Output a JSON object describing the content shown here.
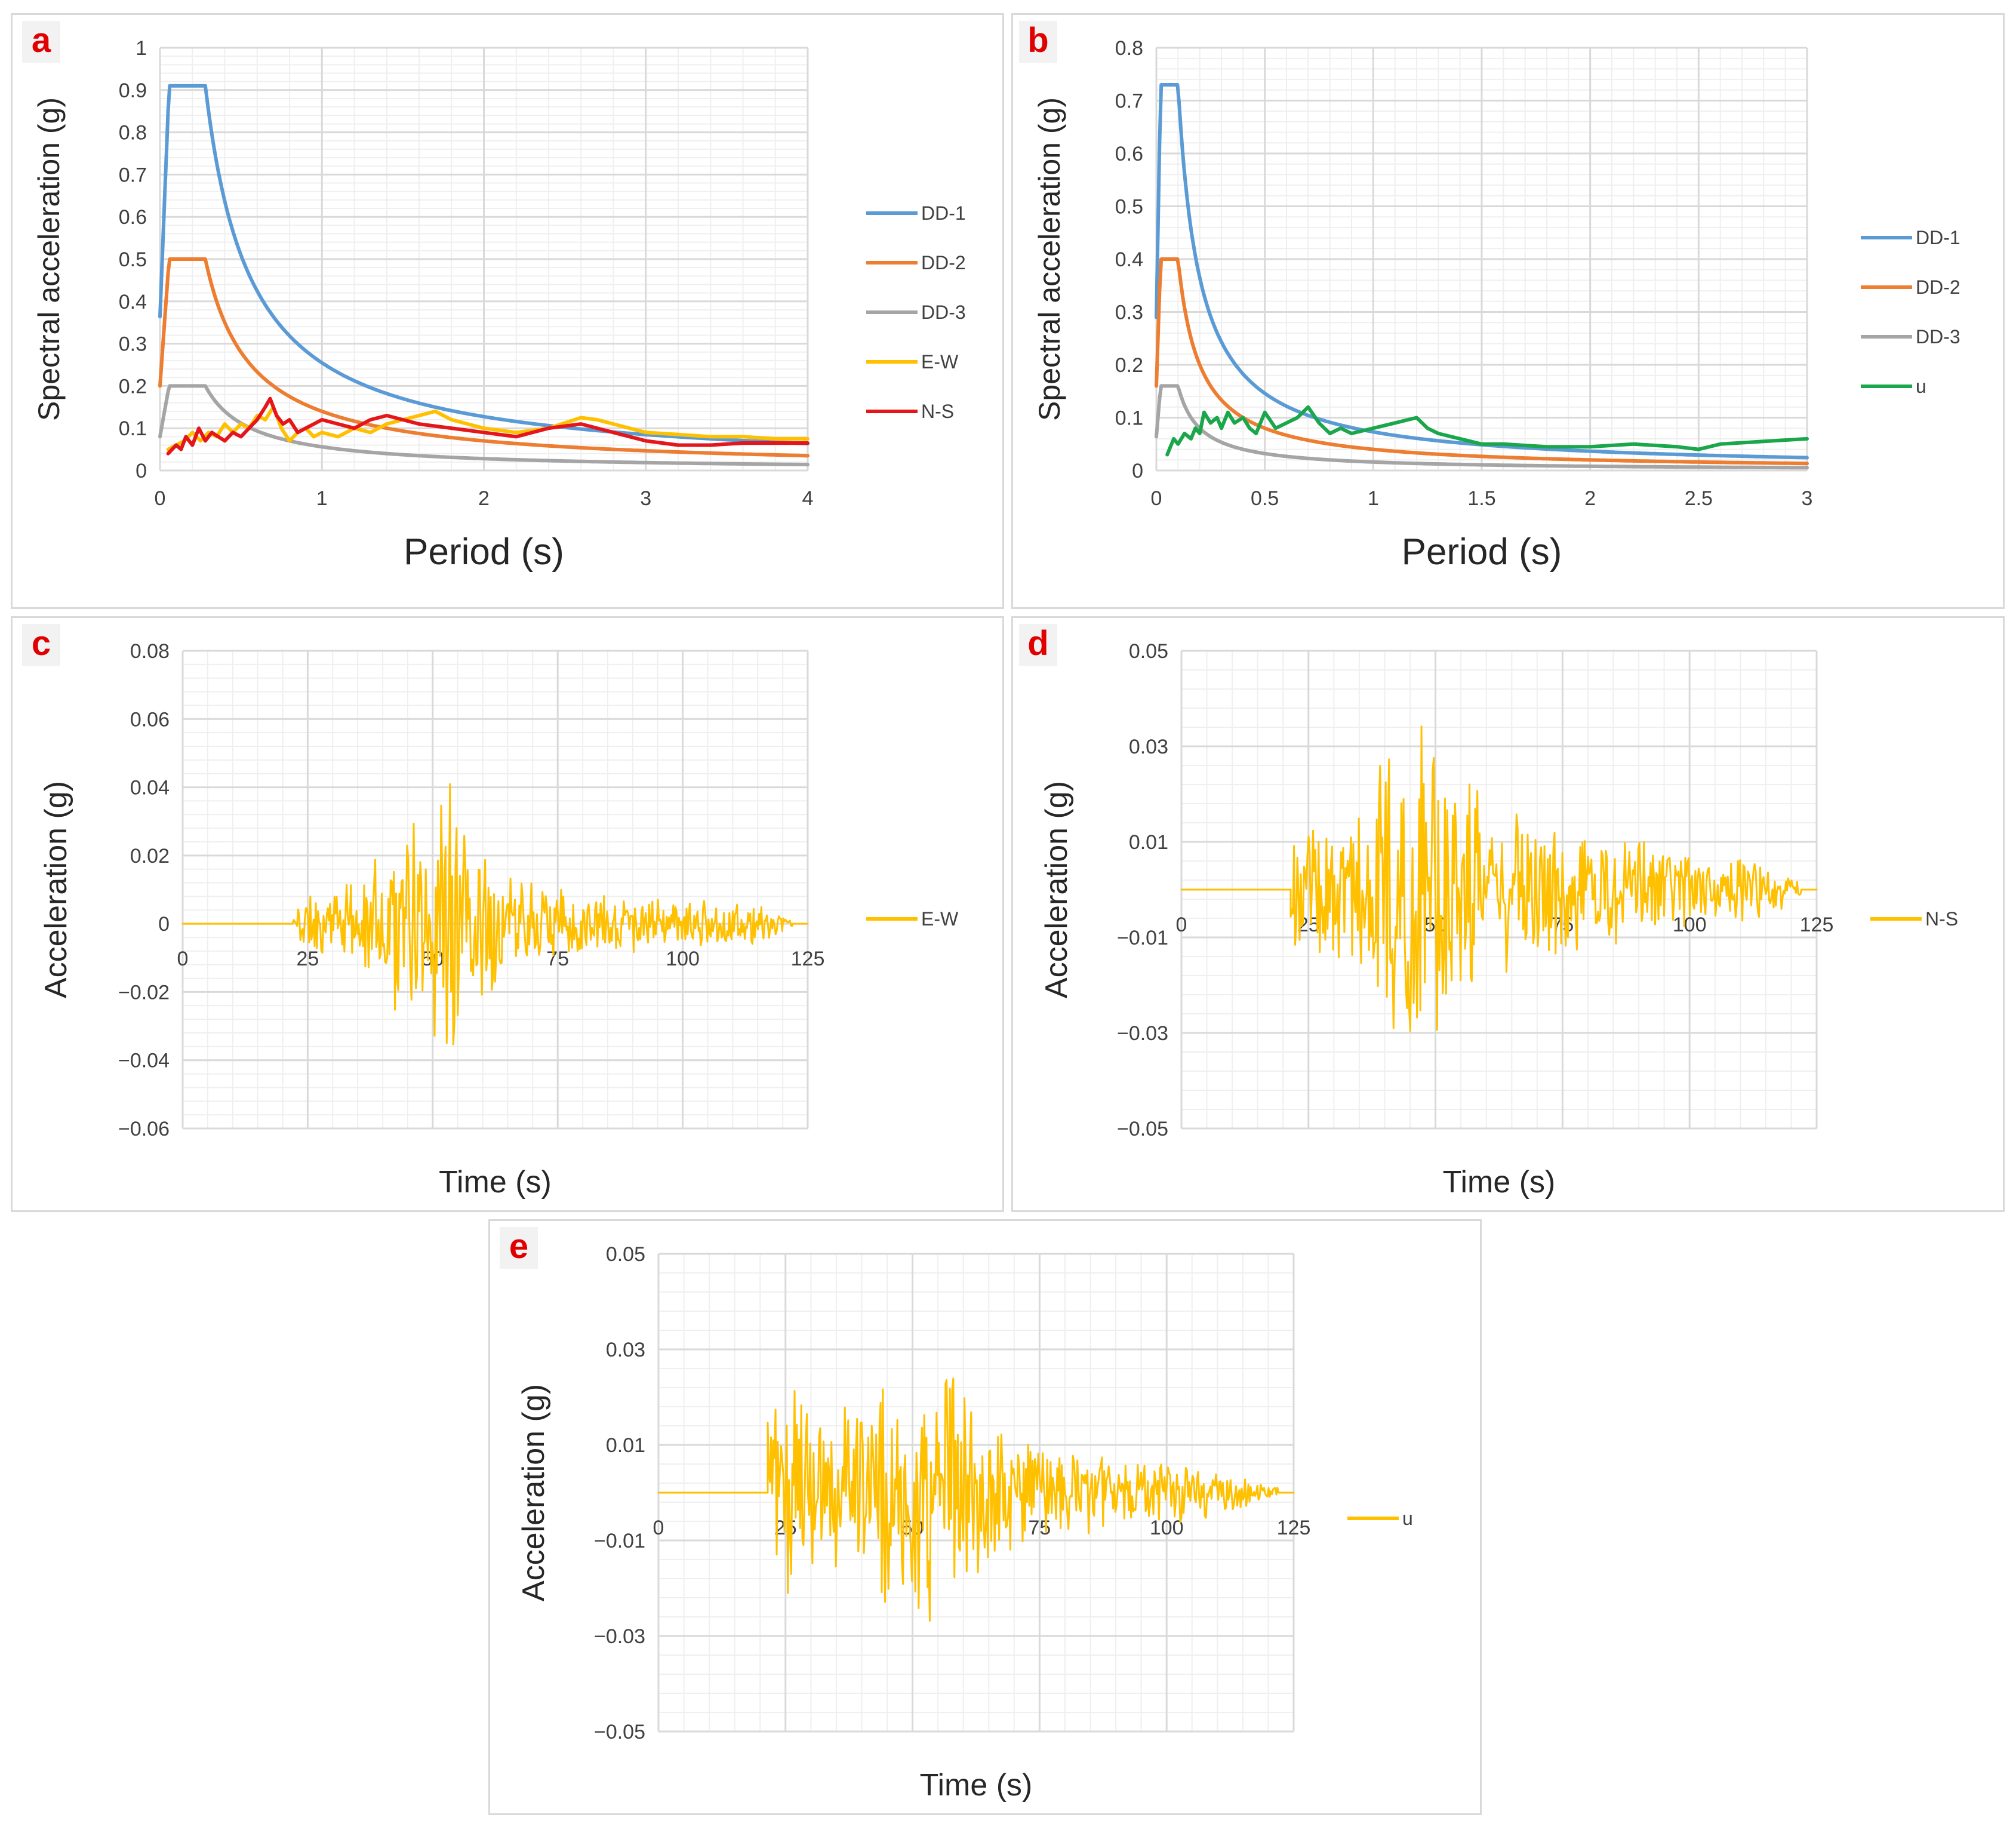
{
  "figure": {
    "colors": {
      "dd1": "#5b9bd5",
      "dd2": "#ed7d31",
      "dd3": "#a5a5a5",
      "ew": "#ffc000",
      "ns": "#e4161b",
      "u": "#1aa64a",
      "record": "#ffc000",
      "grid_major": "#d9d9d9",
      "grid_minor": "#efefef",
      "panel_label": "#e00000"
    }
  },
  "chart_data": [
    {
      "panel": "a",
      "type": "line",
      "title": "",
      "xlabel": "Period (s)",
      "ylabel": "Spectral acceleration (g)",
      "xlim": [
        0,
        4
      ],
      "ylim": [
        0,
        1
      ],
      "xticks": [
        0,
        1,
        2,
        3,
        4
      ],
      "xtick_labels": [
        "0",
        "1",
        "2",
        "3",
        "4"
      ],
      "yticks": [
        0,
        0.1,
        0.2,
        0.3,
        0.4,
        0.5,
        0.6,
        0.7,
        0.8,
        0.9,
        1
      ],
      "ytick_labels": [
        "0",
        "0.1",
        "0.2",
        "0.3",
        "0.4",
        "0.5",
        "0.6",
        "0.7",
        "0.8",
        "0.9",
        "1"
      ],
      "grid": true,
      "legend_position": "right",
      "series": [
        {
          "name": "DD-1",
          "color_key": "dd1",
          "kind": "design",
          "pga": 0.364,
          "sds": 0.91,
          "ta": 0.056,
          "tb": 0.28
        },
        {
          "name": "DD-2",
          "color_key": "dd2",
          "kind": "design",
          "pga": 0.2,
          "sds": 0.5,
          "ta": 0.056,
          "tb": 0.28
        },
        {
          "name": "DD-3",
          "color_key": "dd3",
          "kind": "design",
          "pga": 0.08,
          "sds": 0.2,
          "ta": 0.056,
          "tb": 0.28
        },
        {
          "name": "E-W",
          "color_key": "ew",
          "kind": "points",
          "x": [
            0.05,
            0.1,
            0.15,
            0.2,
            0.25,
            0.3,
            0.35,
            0.4,
            0.45,
            0.5,
            0.55,
            0.6,
            0.65,
            0.7,
            0.75,
            0.8,
            0.85,
            0.9,
            0.95,
            1.0,
            1.1,
            1.2,
            1.3,
            1.4,
            1.5,
            1.6,
            1.7,
            1.8,
            1.9,
            2.0,
            2.2,
            2.4,
            2.6,
            2.7,
            2.8,
            3.0,
            3.2,
            3.4,
            3.6,
            3.8,
            4.0
          ],
          "y": [
            0.05,
            0.06,
            0.07,
            0.09,
            0.07,
            0.09,
            0.08,
            0.11,
            0.09,
            0.11,
            0.1,
            0.13,
            0.12,
            0.15,
            0.1,
            0.07,
            0.09,
            0.1,
            0.08,
            0.09,
            0.08,
            0.1,
            0.09,
            0.11,
            0.12,
            0.13,
            0.14,
            0.12,
            0.11,
            0.1,
            0.09,
            0.1,
            0.125,
            0.12,
            0.11,
            0.09,
            0.085,
            0.08,
            0.08,
            0.075,
            0.075
          ]
        },
        {
          "name": "N-S",
          "color_key": "ns",
          "kind": "points",
          "x": [
            0.05,
            0.1,
            0.13,
            0.16,
            0.2,
            0.24,
            0.28,
            0.32,
            0.36,
            0.4,
            0.45,
            0.5,
            0.55,
            0.6,
            0.65,
            0.68,
            0.72,
            0.76,
            0.8,
            0.85,
            0.9,
            0.95,
            1.0,
            1.1,
            1.2,
            1.3,
            1.4,
            1.5,
            1.6,
            1.8,
            2.0,
            2.2,
            2.4,
            2.6,
            2.8,
            3.0,
            3.2,
            3.4,
            3.6,
            3.8,
            4.0
          ],
          "y": [
            0.04,
            0.06,
            0.05,
            0.08,
            0.06,
            0.1,
            0.07,
            0.09,
            0.08,
            0.07,
            0.09,
            0.08,
            0.1,
            0.12,
            0.15,
            0.17,
            0.13,
            0.11,
            0.12,
            0.09,
            0.1,
            0.11,
            0.12,
            0.11,
            0.1,
            0.12,
            0.13,
            0.12,
            0.11,
            0.1,
            0.09,
            0.08,
            0.1,
            0.11,
            0.09,
            0.07,
            0.06,
            0.06,
            0.065,
            0.065,
            0.065
          ]
        }
      ]
    },
    {
      "panel": "b",
      "type": "line",
      "title": "",
      "xlabel": "Period (s)",
      "ylabel": "Spectral acceleration (g)",
      "xlim": [
        0,
        3
      ],
      "ylim": [
        0,
        0.8
      ],
      "xticks": [
        0,
        0.5,
        1,
        1.5,
        2,
        2.5,
        3
      ],
      "xtick_labels": [
        "0",
        "0.5",
        "1",
        "1.5",
        "2",
        "2.5",
        "3"
      ],
      "yticks": [
        0,
        0.1,
        0.2,
        0.3,
        0.4,
        0.5,
        0.6,
        0.7,
        0.8
      ],
      "ytick_labels": [
        "0",
        "0.1",
        "0.2",
        "0.3",
        "0.4",
        "0.5",
        "0.6",
        "0.7",
        "0.8"
      ],
      "grid": true,
      "legend_position": "right",
      "series": [
        {
          "name": "DD-1",
          "color_key": "dd1",
          "kind": "design",
          "pga": 0.29,
          "sds": 0.73,
          "ta": 0.02,
          "tb": 0.1
        },
        {
          "name": "DD-2",
          "color_key": "dd2",
          "kind": "design",
          "pga": 0.16,
          "sds": 0.4,
          "ta": 0.02,
          "tb": 0.1
        },
        {
          "name": "DD-3",
          "color_key": "dd3",
          "kind": "design",
          "pga": 0.064,
          "sds": 0.16,
          "ta": 0.02,
          "tb": 0.1
        },
        {
          "name": "u",
          "color_key": "u",
          "kind": "points",
          "x": [
            0.05,
            0.08,
            0.1,
            0.13,
            0.16,
            0.18,
            0.2,
            0.22,
            0.25,
            0.28,
            0.3,
            0.33,
            0.36,
            0.4,
            0.43,
            0.46,
            0.5,
            0.55,
            0.6,
            0.65,
            0.7,
            0.75,
            0.8,
            0.85,
            0.9,
            1.0,
            1.1,
            1.2,
            1.25,
            1.3,
            1.4,
            1.5,
            1.6,
            1.8,
            2.0,
            2.2,
            2.4,
            2.5,
            2.6,
            2.8,
            3.0
          ],
          "y": [
            0.03,
            0.06,
            0.05,
            0.07,
            0.06,
            0.08,
            0.07,
            0.11,
            0.09,
            0.1,
            0.08,
            0.11,
            0.09,
            0.1,
            0.08,
            0.07,
            0.11,
            0.08,
            0.09,
            0.1,
            0.12,
            0.09,
            0.07,
            0.08,
            0.07,
            0.08,
            0.09,
            0.1,
            0.08,
            0.07,
            0.06,
            0.05,
            0.05,
            0.045,
            0.045,
            0.05,
            0.045,
            0.04,
            0.05,
            0.055,
            0.06
          ]
        }
      ]
    },
    {
      "panel": "c",
      "type": "line",
      "title": "",
      "xlabel": "Time (s)",
      "ylabel": "Acceleration (g)",
      "xlim": [
        0,
        125
      ],
      "ylim": [
        -0.06,
        0.08
      ],
      "xticks": [
        0,
        25,
        50,
        75,
        100,
        125
      ],
      "xtick_labels": [
        "0",
        "25",
        "50",
        "75",
        "100",
        "125"
      ],
      "yticks": [
        -0.06,
        -0.04,
        -0.02,
        0,
        0.02,
        0.04,
        0.06,
        0.08
      ],
      "ytick_labels": [
        "−0.06",
        "−0.04",
        "−0.02",
        "0",
        "0.02",
        "0.04",
        "0.06",
        "0.08"
      ],
      "grid": true,
      "legend_position": "right",
      "series": [
        {
          "name": "E-W",
          "color_key": "record",
          "kind": "record",
          "t_start": 22,
          "t_end": 122,
          "dt": 0.22,
          "seed": 11,
          "envelope_t": [
            22,
            30,
            37,
            42,
            47,
            50,
            53,
            57,
            62,
            68,
            75,
            85,
            95,
            105,
            115,
            122
          ],
          "envelope_a": [
            0.007,
            0.012,
            0.014,
            0.034,
            0.03,
            0.038,
            0.05,
            0.028,
            0.022,
            0.016,
            0.012,
            0.01,
            0.008,
            0.007,
            0.006,
            0.001
          ]
        }
      ]
    },
    {
      "panel": "d",
      "type": "line",
      "title": "",
      "xlabel": "Time (s)",
      "ylabel": "Acceleration (g)",
      "xlim": [
        0,
        125
      ],
      "ylim": [
        -0.05,
        0.05
      ],
      "xticks": [
        0,
        25,
        50,
        75,
        100,
        125
      ],
      "xtick_labels": [
        "0",
        "25",
        "50",
        "75",
        "100",
        "125"
      ],
      "yticks": [
        -0.05,
        -0.03,
        -0.01,
        0.01,
        0.03,
        0.05
      ],
      "ytick_labels": [
        "−0.05",
        "−0.03",
        "−0.01",
        "0.01",
        "0.03",
        "0.05"
      ],
      "grid": true,
      "legend_position": "right",
      "series": [
        {
          "name": "N-S",
          "color_key": "record",
          "kind": "record",
          "t_start": 21.5,
          "t_end": 122,
          "dt": 0.22,
          "seed": 23,
          "envelope_t": [
            21.5,
            25,
            32,
            38,
            42,
            46,
            50,
            54,
            60,
            70,
            80,
            90,
            100,
            110,
            118,
            122
          ],
          "envelope_a": [
            0.012,
            0.014,
            0.015,
            0.028,
            0.036,
            0.042,
            0.038,
            0.03,
            0.02,
            0.016,
            0.013,
            0.011,
            0.008,
            0.007,
            0.006,
            0.001
          ]
        }
      ]
    },
    {
      "panel": "e",
      "type": "line",
      "title": "",
      "xlabel": "Time (s)",
      "ylabel": "Acceleration (g)",
      "xlim": [
        0,
        125
      ],
      "ylim": [
        -0.05,
        0.05
      ],
      "xticks": [
        0,
        25,
        50,
        75,
        100,
        125
      ],
      "xtick_labels": [
        "0",
        "25",
        "50",
        "75",
        "100",
        "125"
      ],
      "yticks": [
        -0.05,
        -0.03,
        -0.01,
        0.01,
        0.03,
        0.05
      ],
      "ytick_labels": [
        "−0.05",
        "−0.03",
        "−0.01",
        "0.01",
        "0.03",
        "0.05"
      ],
      "grid": true,
      "legend_position": "right",
      "series": [
        {
          "name": "u",
          "color_key": "record",
          "kind": "record",
          "t_start": 21.5,
          "t_end": 122,
          "dt": 0.22,
          "seed": 37,
          "envelope_t": [
            21.5,
            25,
            30,
            36,
            42,
            48,
            52,
            56,
            60,
            66,
            72,
            80,
            90,
            100,
            110,
            122
          ],
          "envelope_a": [
            0.018,
            0.03,
            0.02,
            0.02,
            0.024,
            0.028,
            0.026,
            0.032,
            0.024,
            0.016,
            0.012,
            0.01,
            0.008,
            0.007,
            0.005,
            0.001
          ]
        }
      ]
    }
  ]
}
